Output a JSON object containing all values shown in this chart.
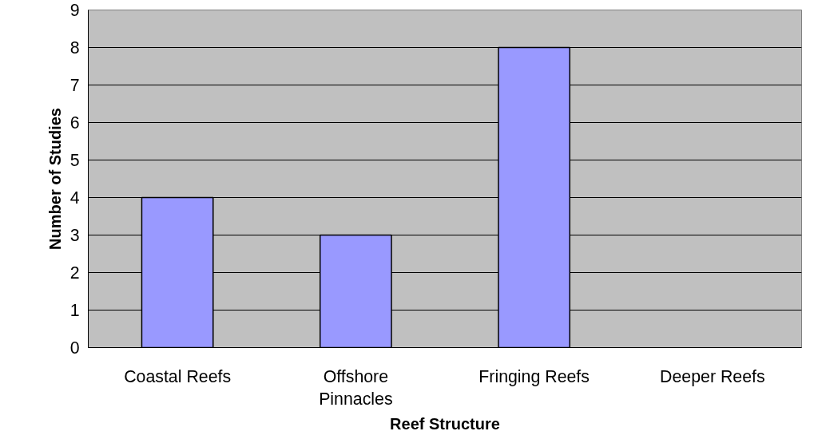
{
  "chart_data": {
    "type": "bar",
    "xlabel": "Reef Structure",
    "ylabel": "Number of Studies",
    "categories": [
      "Coastal Reefs",
      "Offshore Pinnacles",
      "Fringing Reefs",
      "Deeper Reefs"
    ],
    "values": [
      4,
      3,
      8,
      0
    ],
    "color": "#9999ff",
    "ylim": [
      0,
      9
    ],
    "yticks": [
      0,
      1,
      2,
      3,
      4,
      5,
      6,
      7,
      8,
      9
    ],
    "grid": "y"
  }
}
